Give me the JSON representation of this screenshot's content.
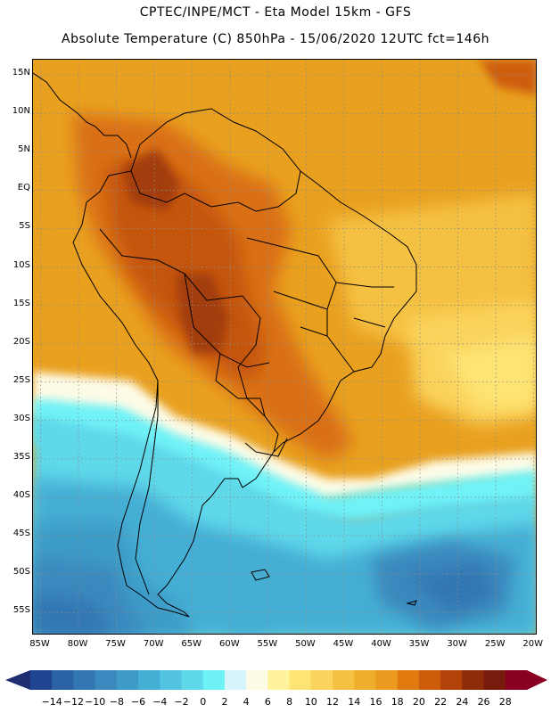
{
  "header": {
    "line1": "CPTEC/INPE/MCT  -   Eta Model 15km  -  GFS",
    "line2": "Absolute Temperature (C) 850hPa  -  15/06/2020 12UTC fct=146h"
  },
  "map": {
    "lat_labels": [
      "15N",
      "10N",
      "5N",
      "EQ",
      "5S",
      "10S",
      "15S",
      "20S",
      "25S",
      "30S",
      "35S",
      "40S",
      "45S",
      "50S",
      "55S"
    ],
    "lat_values": [
      15,
      10,
      5,
      0,
      -5,
      -10,
      -15,
      -20,
      -25,
      -30,
      -35,
      -40,
      -45,
      -50,
      -55
    ],
    "lon_labels": [
      "85W",
      "80W",
      "75W",
      "70W",
      "65W",
      "60W",
      "55W",
      "50W",
      "45W",
      "40W",
      "35W",
      "30W",
      "25W",
      "20W"
    ],
    "lon_values": [
      -85,
      -80,
      -75,
      -70,
      -65,
      -60,
      -55,
      -50,
      -45,
      -40,
      -35,
      -30,
      -25,
      -20
    ],
    "lon_range": [
      -86,
      -19.5
    ],
    "lat_range": [
      17,
      -58
    ],
    "grid": "dotted",
    "field": "Absolute Temperature (C) 850hPa"
  },
  "colorbar": {
    "labels": [
      "-14",
      "-12",
      "-10",
      "-8",
      "-6",
      "-4",
      "-2",
      "0",
      "2",
      "4",
      "6",
      "8",
      "10",
      "12",
      "14",
      "16",
      "18",
      "20",
      "22",
      "24",
      "26",
      "28"
    ],
    "colors": [
      "#1f4591",
      "#2a62a4",
      "#3277b2",
      "#3a88bd",
      "#3e9bc8",
      "#44aed4",
      "#52c3e0",
      "#5fd8ea",
      "#6ff2f7",
      "#d6f6fb",
      "#fdfbe6",
      "#fff39c",
      "#fde474",
      "#fad35c",
      "#f5c142",
      "#eeae2c",
      "#ea9a1e",
      "#e07a0f",
      "#ce5d0b",
      "#b2420a",
      "#8e2c0a",
      "#771c0c",
      "#8a0022"
    ],
    "arrow_left_color": "#1f2e73",
    "arrow_right_color": "#8a0022"
  }
}
